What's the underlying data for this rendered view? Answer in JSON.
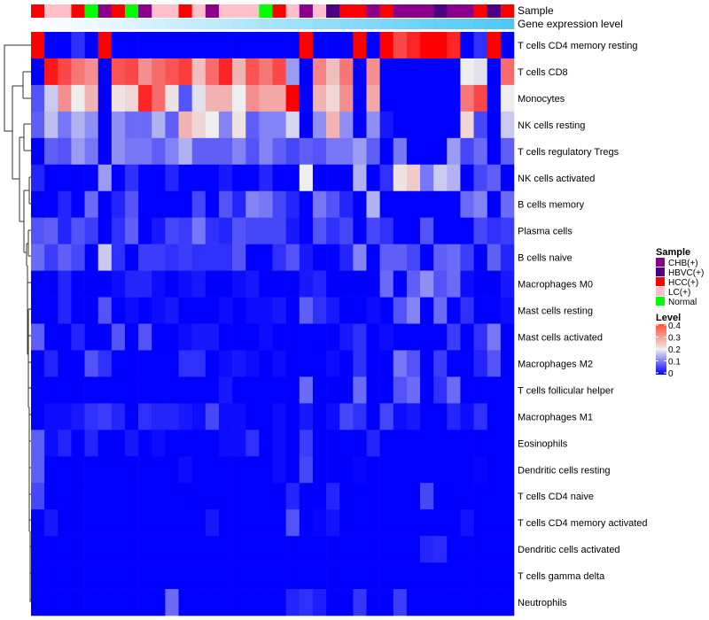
{
  "chart_data": {
    "type": "heatmap",
    "title": "",
    "annotation_titles": [
      "Sample",
      "Gene expression level"
    ],
    "rows": [
      "T cells CD4 memory resting",
      "T cells CD8",
      "Monocytes",
      "NK cells resting",
      "T cells regulatory  Tregs",
      "NK cells activated",
      "B cells memory",
      "Plasma cells",
      "B cells naive",
      "Macrophages M0",
      "Mast cells resting",
      "Mast cells activated",
      "Macrophages M2",
      "T cells follicular helper",
      "Macrophages M1",
      "Eosinophils",
      "Dendritic cells resting",
      "T cells CD4 naive",
      "T cells CD4 memory activated",
      "Dendritic cells activated",
      "T cells gamma delta",
      "Neutrophils"
    ],
    "sample_groups": [
      "HCC(+)",
      "LC(+)",
      "LC(+)",
      "HCC(+)",
      "Normal",
      "CHB(+)",
      "HCC(+)",
      "Normal",
      "CHB(+)",
      "LC(+)",
      "LC(+)",
      "HCC(+)",
      "LC(+)",
      "CHB(+)",
      "LC(+)",
      "LC(+)",
      "LC(+)",
      "Normal",
      "HCC(+)",
      "LC(+)",
      "CHB(+)",
      "LC(+)",
      "HBVC(+)",
      "HCC(+)",
      "HCC(+)",
      "CHB(+)",
      "HCC(+)",
      "CHB(+)",
      "CHB(+)",
      "CHB(+)",
      "HBVC(+)",
      "CHB(+)",
      "CHB(+)",
      "HCC(+)",
      "HBVC(+)",
      "HCC(+)"
    ],
    "gene_expression_level_rank": [
      0,
      0.03,
      0.06,
      0.09,
      0.11,
      0.14,
      0.17,
      0.2,
      0.23,
      0.26,
      0.29,
      0.31,
      0.34,
      0.37,
      0.4,
      0.43,
      0.46,
      0.49,
      0.51,
      0.54,
      0.57,
      0.6,
      0.63,
      0.66,
      0.69,
      0.71,
      0.74,
      0.77,
      0.8,
      0.83,
      0.86,
      0.89,
      0.91,
      0.94,
      0.97,
      1
    ],
    "values": [
      [
        0.4,
        0,
        0,
        0.04,
        0,
        0.4,
        0,
        0,
        0,
        0,
        0,
        0,
        0,
        0,
        0,
        0,
        0,
        0,
        0,
        0,
        0.4,
        0,
        0,
        0,
        0.4,
        0,
        0.4,
        0.34,
        0.37,
        0.4,
        0.4,
        0.37,
        0,
        0.04,
        0.4,
        0
      ],
      [
        0,
        0.38,
        0.34,
        0.3,
        0.28,
        0,
        0.33,
        0.34,
        0.28,
        0.31,
        0.33,
        0.35,
        0.24,
        0.31,
        0.37,
        0.25,
        0.33,
        0.3,
        0.34,
        0.13,
        0,
        0.29,
        0.24,
        0.3,
        0,
        0.28,
        0,
        0,
        0,
        0,
        0,
        0,
        0.2,
        0.19,
        0,
        0.31
      ],
      [
        0.07,
        0.17,
        0.28,
        0.2,
        0.25,
        0,
        0.21,
        0.22,
        0.37,
        0.31,
        0.21,
        0.07,
        0.19,
        0.25,
        0.25,
        0.2,
        0.28,
        0.26,
        0.26,
        0.4,
        0,
        0.25,
        0.22,
        0.28,
        0,
        0.26,
        0,
        0,
        0,
        0,
        0,
        0,
        0.3,
        0.34,
        0,
        0.2
      ],
      [
        0.08,
        0.16,
        0.1,
        0.15,
        0.12,
        0,
        0.12,
        0.09,
        0.09,
        0.15,
        0.08,
        0.25,
        0.22,
        0.2,
        0.11,
        0.21,
        0.08,
        0.11,
        0.11,
        0.18,
        0,
        0.12,
        0.25,
        0.12,
        0,
        0.12,
        0.02,
        0,
        0,
        0,
        0,
        0,
        0.22,
        0.06,
        0,
        0.17
      ],
      [
        0,
        0.08,
        0.07,
        0.13,
        0.1,
        0,
        0.12,
        0.1,
        0.1,
        0.08,
        0.11,
        0.15,
        0.08,
        0.08,
        0.08,
        0.11,
        0.07,
        0.11,
        0.08,
        0.06,
        0.08,
        0.07,
        0.1,
        0.1,
        0.13,
        0.08,
        0,
        0.1,
        0,
        0,
        0,
        0.13,
        0.06,
        0.09,
        0,
        0.08
      ],
      [
        0.03,
        0,
        0,
        0,
        0,
        0.13,
        0,
        0.04,
        0,
        0,
        0.03,
        0,
        0,
        0,
        0.02,
        0,
        0,
        0.03,
        0,
        0,
        0.2,
        0,
        0,
        0,
        0.15,
        0,
        0.04,
        0.21,
        0.23,
        0.1,
        0.17,
        0.15,
        0,
        0.06,
        0.08,
        0
      ],
      [
        0,
        0,
        0.03,
        0,
        0.09,
        0,
        0.03,
        0.07,
        0,
        0,
        0,
        0,
        0.06,
        0,
        0.07,
        0.03,
        0.11,
        0.1,
        0.06,
        0.03,
        0,
        0.1,
        0.07,
        0.03,
        0,
        0.15,
        0,
        0,
        0,
        0,
        0,
        0,
        0.09,
        0.11,
        0,
        0.09
      ],
      [
        0.07,
        0.08,
        0.03,
        0.07,
        0.05,
        0,
        0.04,
        0.08,
        0,
        0.02,
        0.06,
        0.05,
        0.1,
        0.04,
        0.03,
        0.07,
        0.06,
        0.06,
        0.06,
        0.02,
        0,
        0.07,
        0.04,
        0.06,
        0,
        0.06,
        0.04,
        0,
        0,
        0.07,
        0,
        0,
        0,
        0.06,
        0.04,
        0.05
      ],
      [
        0.09,
        0.05,
        0.08,
        0.06,
        0,
        0.17,
        0.04,
        0,
        0.05,
        0.05,
        0.04,
        0.05,
        0.04,
        0.04,
        0.04,
        0.07,
        0,
        0,
        0.04,
        0.07,
        0.02,
        0,
        0,
        0.03,
        0.11,
        0,
        0.08,
        0.08,
        0.06,
        0,
        0.08,
        0.09,
        0.05,
        0,
        0.08,
        0.03
      ],
      [
        0,
        0,
        0.03,
        0,
        0,
        0,
        0.01,
        0.03,
        0.03,
        0.01,
        0,
        0.01,
        0.02,
        0,
        0,
        0.01,
        0.02,
        0,
        0,
        0,
        0.02,
        0.03,
        0,
        0,
        0,
        0,
        0.09,
        0,
        0.08,
        0.12,
        0.07,
        0.09,
        0.01,
        0,
        0,
        0.02
      ],
      [
        0,
        0,
        0.03,
        0,
        0,
        0.07,
        0,
        0.01,
        0,
        0.01,
        0.02,
        0,
        0,
        0,
        0.01,
        0,
        0.01,
        0.01,
        0.02,
        0,
        0.08,
        0.04,
        0.02,
        0,
        0,
        0.01,
        0,
        0.07,
        0.11,
        0,
        0.09,
        0,
        0.04,
        0,
        0,
        0.01
      ],
      [
        0.08,
        0,
        0,
        0.03,
        0,
        0,
        0.07,
        0,
        0.07,
        0,
        0,
        0.01,
        0.02,
        0.02,
        0,
        0,
        0,
        0.01,
        0,
        0,
        0,
        0,
        0,
        0.02,
        0.04,
        0,
        0.01,
        0,
        0,
        0,
        0,
        0.05,
        0,
        0.04,
        0.1,
        0
      ],
      [
        0,
        0.03,
        0,
        0,
        0.07,
        0.04,
        0,
        0,
        0,
        0,
        0,
        0.04,
        0.04,
        0,
        0.01,
        0.02,
        0.01,
        0,
        0.01,
        0,
        0,
        0,
        0.01,
        0,
        0.04,
        0,
        0,
        0.1,
        0.07,
        0,
        0.05,
        0,
        0,
        0.03,
        0.07,
        0
      ],
      [
        0,
        0,
        0,
        0,
        0,
        0,
        0,
        0,
        0,
        0,
        0,
        0,
        0,
        0,
        0.02,
        0,
        0,
        0,
        0,
        0,
        0.09,
        0,
        0,
        0,
        0.09,
        0,
        0,
        0.07,
        0.09,
        0,
        0.04,
        0.09,
        0,
        0,
        0,
        0
      ],
      [
        0,
        0.01,
        0.01,
        0.02,
        0.04,
        0.05,
        0.03,
        0,
        0.04,
        0.03,
        0.03,
        0.02,
        0.01,
        0.06,
        0.01,
        0.01,
        0,
        0,
        0.01,
        0,
        0.02,
        0,
        0.01,
        0.06,
        0.04,
        0,
        0.06,
        0.01,
        0.02,
        0,
        0,
        0.03,
        0.01,
        0.04,
        0,
        0
      ],
      [
        0.08,
        0.01,
        0.03,
        0,
        0.03,
        0,
        0,
        0.02,
        0,
        0.01,
        0,
        0,
        0,
        0,
        0.01,
        0.01,
        0.04,
        0,
        0.01,
        0,
        0.05,
        0,
        0,
        0,
        0,
        0.03,
        0,
        0,
        0,
        0,
        0,
        0,
        0,
        0,
        0,
        0
      ],
      [
        0.08,
        0,
        0,
        0,
        0,
        0,
        0,
        0,
        0,
        0,
        0,
        0.01,
        0,
        0,
        0,
        0,
        0,
        0,
        0.01,
        0,
        0.06,
        0,
        0,
        0,
        0.005,
        0,
        0,
        0,
        0,
        0,
        0,
        0,
        0,
        0.005,
        0,
        0
      ],
      [
        0.06,
        0,
        0,
        0,
        0,
        0,
        0,
        0,
        0,
        0,
        0,
        0,
        0,
        0,
        0,
        0,
        0,
        0,
        0,
        0.03,
        0,
        0,
        0.03,
        0,
        0,
        0,
        0,
        0,
        0,
        0.06,
        0,
        0,
        0,
        0,
        0,
        0
      ],
      [
        0,
        0.02,
        0,
        0,
        0,
        0,
        0,
        0,
        0,
        0,
        0,
        0,
        0,
        0.02,
        0,
        0,
        0,
        0,
        0,
        0.07,
        0,
        0.005,
        0.015,
        0,
        0,
        0,
        0,
        0,
        0,
        0,
        0,
        0,
        0.015,
        0,
        0,
        0
      ],
      [
        0,
        0,
        0,
        0,
        0,
        0,
        0,
        0,
        0,
        0,
        0,
        0,
        0,
        0,
        0,
        0,
        0,
        0,
        0,
        0,
        0,
        0,
        0,
        0,
        0,
        0,
        0,
        0,
        0,
        0.03,
        0.035,
        0,
        0,
        0,
        0,
        0
      ],
      [
        0,
        0,
        0,
        0,
        0,
        0,
        0,
        0,
        0,
        0,
        0,
        0,
        0,
        0,
        0,
        0,
        0,
        0,
        0,
        0,
        0,
        0,
        0,
        0,
        0,
        0,
        0,
        0,
        0,
        0,
        0,
        0,
        0,
        0,
        0,
        0
      ],
      [
        0,
        0,
        0,
        0,
        0,
        0,
        0,
        0,
        0,
        0,
        0.09,
        0,
        0,
        0,
        0,
        0,
        0,
        0,
        0,
        0.03,
        0.04,
        0.025,
        0,
        0,
        0.045,
        0,
        0,
        0.05,
        0,
        0,
        0,
        0,
        0,
        0,
        0,
        0
      ]
    ],
    "color_scale": {
      "low": "#0000FF",
      "mid": "#EEEEEE",
      "high": "#FF0000",
      "range": [
        0,
        0.4
      ]
    },
    "legend": {
      "sample_title": "Sample",
      "sample_items": [
        {
          "label": "CHB(+)",
          "color": "#8B008B"
        },
        {
          "label": "HBVC(+)",
          "color": "#4B0082"
        },
        {
          "label": "HCC(+)",
          "color": "#FF0000"
        },
        {
          "label": "LC(+)",
          "color": "#FFC0CB"
        },
        {
          "label": "Normal",
          "color": "#00FF00"
        }
      ],
      "level_title": "Level",
      "level_ticks": [
        "0.4",
        "0.3",
        "0.2",
        "0.1",
        "0"
      ],
      "placement": "right"
    },
    "gene_level_colors": {
      "low": "#FFFFFF",
      "high": "#4FC8F5"
    }
  }
}
